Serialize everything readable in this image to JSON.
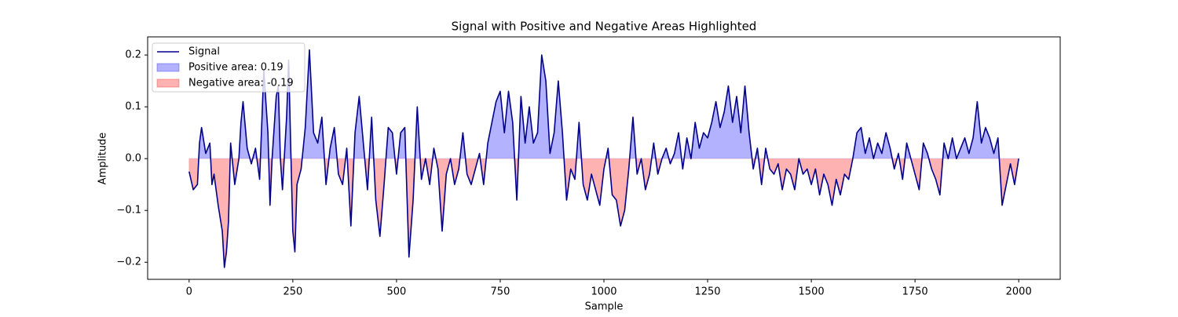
{
  "chart_data": {
    "type": "line",
    "title": "Signal with Positive and Negative Areas Highlighted",
    "xlabel": "Sample",
    "ylabel": "Amplitude",
    "x": [
      0,
      10,
      20,
      25,
      30,
      40,
      50,
      55,
      60,
      70,
      80,
      85,
      90,
      95,
      100,
      110,
      120,
      125,
      130,
      140,
      150,
      160,
      170,
      180,
      190,
      195,
      200,
      210,
      215,
      220,
      225,
      235,
      240,
      245,
      250,
      255,
      260,
      270,
      280,
      290,
      300,
      310,
      320,
      330,
      340,
      350,
      360,
      370,
      380,
      390,
      400,
      410,
      420,
      430,
      440,
      450,
      460,
      470,
      480,
      490,
      500,
      510,
      520,
      530,
      540,
      550,
      560,
      570,
      580,
      590,
      600,
      610,
      620,
      630,
      640,
      650,
      660,
      670,
      680,
      690,
      700,
      710,
      720,
      740,
      750,
      760,
      770,
      780,
      790,
      800,
      810,
      820,
      830,
      840,
      850,
      860,
      870,
      880,
      890,
      900,
      910,
      920,
      930,
      940,
      950,
      960,
      970,
      980,
      990,
      1000,
      1010,
      1020,
      1030,
      1040,
      1050,
      1060,
      1070,
      1080,
      1090,
      1100,
      1110,
      1120,
      1130,
      1140,
      1150,
      1160,
      1170,
      1180,
      1190,
      1200,
      1210,
      1220,
      1230,
      1240,
      1250,
      1260,
      1270,
      1280,
      1290,
      1300,
      1310,
      1320,
      1330,
      1340,
      1350,
      1360,
      1370,
      1380,
      1390,
      1400,
      1410,
      1420,
      1430,
      1440,
      1450,
      1460,
      1470,
      1480,
      1490,
      1500,
      1510,
      1520,
      1530,
      1540,
      1550,
      1560,
      1570,
      1580,
      1590,
      1600,
      1610,
      1620,
      1630,
      1640,
      1650,
      1660,
      1670,
      1680,
      1690,
      1700,
      1710,
      1720,
      1730,
      1740,
      1750,
      1760,
      1770,
      1780,
      1790,
      1800,
      1810,
      1820,
      1830,
      1840,
      1850,
      1860,
      1870,
      1880,
      1890,
      1900,
      1910,
      1920,
      1930,
      1940,
      1950,
      1960,
      1970,
      1980,
      1990,
      2000
    ],
    "series": [
      {
        "name": "Signal",
        "color": "#00008b",
        "values": [
          -0.025,
          -0.06,
          -0.05,
          0.03,
          0.06,
          0.01,
          0.03,
          -0.05,
          -0.03,
          -0.09,
          -0.14,
          -0.21,
          -0.18,
          -0.12,
          0.03,
          -0.05,
          0.0,
          0.07,
          0.11,
          0.02,
          -0.01,
          0.02,
          -0.04,
          0.17,
          0.05,
          -0.09,
          0.0,
          0.12,
          0.14,
          0.0,
          -0.06,
          0.08,
          0.19,
          0.02,
          -0.14,
          -0.18,
          -0.05,
          -0.02,
          0.06,
          0.21,
          0.05,
          0.03,
          0.08,
          -0.05,
          0.02,
          0.06,
          -0.03,
          -0.05,
          0.02,
          -0.13,
          0.05,
          0.12,
          0.03,
          -0.06,
          0.08,
          -0.08,
          -0.15,
          -0.05,
          0.06,
          0.05,
          -0.03,
          0.05,
          0.06,
          -0.19,
          -0.08,
          0.1,
          -0.04,
          0.0,
          -0.05,
          0.02,
          -0.02,
          -0.14,
          -0.03,
          0.0,
          -0.05,
          -0.02,
          0.05,
          -0.03,
          -0.05,
          -0.02,
          0.01,
          -0.05,
          0.03,
          0.11,
          0.13,
          0.05,
          0.13,
          0.07,
          -0.08,
          0.12,
          0.03,
          0.1,
          0.03,
          0.05,
          0.2,
          0.15,
          0.01,
          0.05,
          0.15,
          0.05,
          -0.08,
          -0.02,
          -0.04,
          0.07,
          -0.05,
          -0.08,
          -0.03,
          -0.06,
          -0.09,
          -0.02,
          0.02,
          -0.07,
          -0.08,
          -0.13,
          -0.1,
          -0.02,
          0.08,
          -0.03,
          0.0,
          -0.06,
          -0.03,
          0.03,
          -0.03,
          0.0,
          0.02,
          -0.01,
          0.01,
          0.05,
          -0.02,
          0.04,
          0.0,
          0.07,
          0.02,
          0.05,
          0.04,
          0.07,
          0.11,
          0.06,
          0.09,
          0.14,
          0.07,
          0.12,
          0.05,
          0.14,
          0.05,
          -0.02,
          0.02,
          -0.05,
          0.02,
          -0.02,
          -0.03,
          -0.01,
          -0.06,
          -0.02,
          -0.03,
          -0.06,
          0.0,
          -0.03,
          -0.02,
          -0.05,
          -0.02,
          -0.07,
          -0.03,
          -0.05,
          -0.09,
          -0.04,
          -0.07,
          -0.03,
          -0.04,
          0.0,
          0.05,
          0.06,
          0.01,
          0.04,
          0.0,
          0.03,
          0.01,
          0.05,
          0.02,
          -0.02,
          0.01,
          -0.04,
          0.03,
          0.0,
          -0.03,
          -0.06,
          0.03,
          0.01,
          -0.02,
          -0.04,
          -0.07,
          0.03,
          0.0,
          0.04,
          0.0,
          0.02,
          0.04,
          0.01,
          0.04,
          0.11,
          0.03,
          0.06,
          0.04,
          0.01,
          0.04,
          -0.09,
          -0.05,
          -0.01,
          -0.05,
          0.0
        ]
      }
    ],
    "fills": [
      {
        "name": "Positive area: 0.19",
        "color": "blue",
        "alpha": 0.3,
        "side": "above"
      },
      {
        "name": "Negative area: -0.19",
        "color": "red",
        "alpha": 0.3,
        "side": "below"
      }
    ],
    "xlim": [
      -100,
      2100
    ],
    "xticks": [
      0,
      250,
      500,
      750,
      1000,
      1250,
      1500,
      1750,
      2000
    ],
    "ylim": [
      -0.233,
      0.235
    ],
    "yticks": [
      {
        "value": -0.2,
        "label": "−0.2"
      },
      {
        "value": -0.1,
        "label": "−0.1"
      },
      {
        "value": 0,
        "label": "0.0"
      },
      {
        "value": 0.1,
        "label": "0.1"
      },
      {
        "value": 0.2,
        "label": "0.2"
      }
    ],
    "legend": "upper left"
  }
}
